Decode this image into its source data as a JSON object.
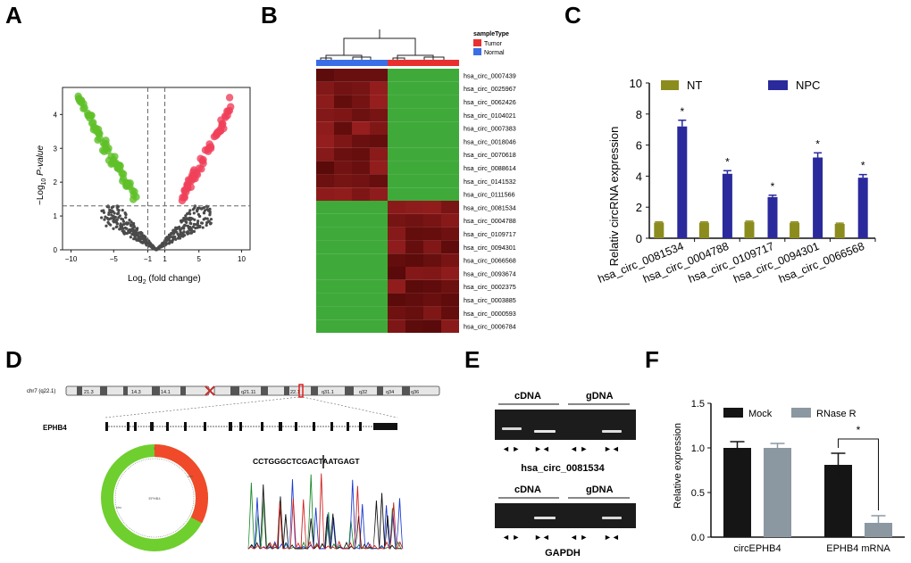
{
  "panels": {
    "a": "A",
    "b": "B",
    "c": "C",
    "d": "D",
    "e": "E",
    "f": "F"
  },
  "colors": {
    "green": "#5fbf28",
    "red": "#f0405a",
    "grey": "#4a4a4a",
    "olive": "#8c8c1e",
    "navy": "#2a2a9c",
    "black": "#151515",
    "rnase": "#8b98a2",
    "tumor": "#e83030",
    "normal": "#3a6ee6"
  },
  "volcano": {
    "ylabel_pre": "−Log",
    "ylabel_sub": "10",
    "ylabel_post": " P-value",
    "xlabel_pre": "Log",
    "xlabel_sub": "2",
    "xlabel_post": " (fold change)",
    "xticks": [
      "−10",
      "−5",
      "−1",
      "1",
      "5",
      "10"
    ],
    "yticks": [
      "0",
      "1",
      "2",
      "3",
      "4"
    ],
    "xlim": [
      -11,
      11
    ],
    "ylim": [
      0,
      4.8
    ],
    "threshold_y": 1.3,
    "threshold_x": [
      -1,
      1
    ]
  },
  "heatmap": {
    "legend_title": "sampleType",
    "legend_items": [
      {
        "label": "Tumor",
        "color": "#e83030"
      },
      {
        "label": "Normal",
        "color": "#3a6ee6"
      }
    ],
    "rows": [
      "hsa_circ_0007439",
      "hsa_circ_0025967",
      "hsa_circ_0062426",
      "hsa_circ_0104021",
      "hsa_circ_0007383",
      "hsa_circ_0018046",
      "hsa_circ_0070618",
      "hsa_circ_0088614",
      "hsa_circ_0141532",
      "hsa_circ_0111566",
      "hsa_circ_0081534",
      "hsa_circ_0004788",
      "hsa_circ_0109717",
      "hsa_circ_0094301",
      "hsa_circ_0066568",
      "hsa_circ_0093674",
      "hsa_circ_0002375",
      "hsa_circ_0003885",
      "hsa_circ_0000593",
      "hsa_circ_0006784"
    ]
  },
  "chart_data": [
    {
      "type": "bar",
      "panel": "C",
      "categories": [
        "hsa_circ_0081534",
        "hsa_circ_0004788",
        "hsa_circ_0109717",
        "hsa_circ_0094301",
        "hsa_circ_0066568"
      ],
      "series": [
        {
          "name": "NT",
          "values": [
            1.0,
            1.0,
            1.05,
            1.0,
            0.92
          ],
          "errors": [
            0.05,
            0.05,
            0.05,
            0.05,
            0.05
          ],
          "color": "#8c8c1e"
        },
        {
          "name": "NPC",
          "values": [
            7.2,
            4.15,
            2.65,
            5.2,
            3.9
          ],
          "errors": [
            0.4,
            0.2,
            0.12,
            0.3,
            0.2
          ],
          "color": "#2a2a9c"
        }
      ],
      "significance": [
        "*",
        "*",
        "*",
        "*",
        "*"
      ],
      "ylabel": "Relativ circRNA expression",
      "yticks": [
        "0",
        "2",
        "4",
        "6",
        "8",
        "10"
      ],
      "ylim": [
        0,
        10
      ]
    },
    {
      "type": "bar",
      "panel": "F",
      "categories": [
        "circEPHB4",
        "EPHB4 mRNA"
      ],
      "series": [
        {
          "name": "Mock",
          "values": [
            1.0,
            0.81
          ],
          "errors": [
            0.07,
            0.13
          ],
          "color": "#151515"
        },
        {
          "name": "RNase R",
          "values": [
            1.0,
            0.16
          ],
          "errors": [
            0.05,
            0.08
          ],
          "color": "#8b98a2"
        }
      ],
      "significance": "*",
      "ylabel": "Relative expression",
      "yticks": [
        "0.0",
        "0.5",
        "1.0",
        "1.5"
      ],
      "ylim": [
        0,
        1.5
      ]
    }
  ],
  "genome": {
    "chr_label": "chr7 (q22.1)",
    "bands": [
      "21.3",
      "14.3",
      "14.1",
      "q21.11",
      "22.1",
      "q31.1",
      "q32",
      "q34",
      "q36"
    ],
    "gene": "EPHB4",
    "plasmid_top_label": "1",
    "plasmid_mid_label": "EPHB4",
    "plasmid_side_label": "circ",
    "plasmid_left_label": "circ",
    "sequence": "CCTGGGCTCGACTAATGAGT"
  },
  "gel": {
    "top_left": "cDNA",
    "top_right": "gDNA",
    "top_caption": "hsa_circ_0081534",
    "bottom_left": "cDNA",
    "bottom_right": "gDNA",
    "bottom_caption": "GAPDH",
    "primer_div": "◄ ►",
    "primer_conv": "►◄"
  }
}
